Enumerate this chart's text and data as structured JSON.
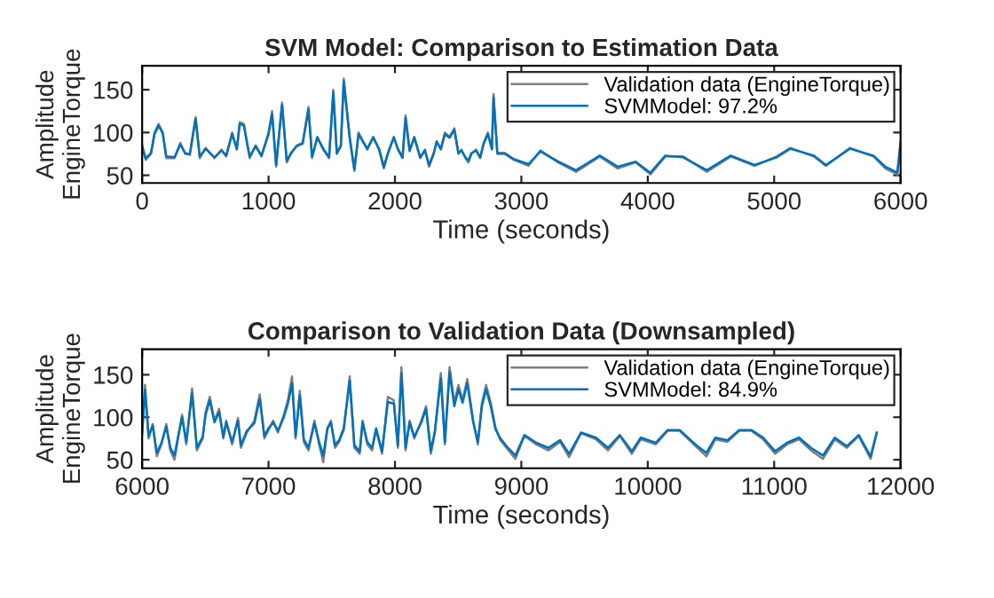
{
  "chart_data": [
    {
      "type": "line",
      "title": "SVM Model: Comparison to Estimation Data",
      "xlabel": "Time (seconds)",
      "ylabel": "Amplitude\nEngineTorque",
      "xlim": [
        0,
        6000
      ],
      "ylim": [
        41,
        178
      ],
      "xticks": [
        0,
        1000,
        2000,
        3000,
        4000,
        5000,
        6000
      ],
      "yticks": [
        50,
        100,
        150
      ],
      "legend": "top right",
      "grid": false,
      "x": [
        0,
        28,
        70,
        98,
        130,
        163,
        191,
        256,
        302,
        340,
        377,
        423,
        456,
        502,
        572,
        628,
        665,
        712,
        749,
        772,
        805,
        828,
        851,
        898,
        944,
        1000,
        1028,
        1060,
        1084,
        1107,
        1144,
        1177,
        1223,
        1270,
        1316,
        1344,
        1386,
        1433,
        1479,
        1512,
        1540,
        1572,
        1595,
        1642,
        1679,
        1712,
        1781,
        1828,
        1874,
        1912,
        1944,
        1991,
        2023,
        2060,
        2084,
        2116,
        2153,
        2200,
        2237,
        2270,
        2307,
        2330,
        2363,
        2395,
        2432,
        2470,
        2502,
        2526,
        2558,
        2581,
        2605,
        2642,
        2674,
        2702,
        2735,
        2767,
        2780,
        2810,
        2868,
        2939,
        3056,
        3151,
        3292,
        3433,
        3621,
        3762,
        3904,
        4021,
        4139,
        4280,
        4468,
        4656,
        4845,
        5019,
        5127,
        5315,
        5409,
        5598,
        5786,
        5880,
        5974,
        6000
      ],
      "series": [
        {
          "name": "Validation data (EngineTorque)",
          "color": "#808080",
          "values": [
            85,
            68,
            75,
            100,
            110,
            100,
            70,
            70,
            88,
            75,
            75,
            118,
            70,
            82,
            70,
            80,
            72,
            100,
            80,
            112,
            110,
            90,
            70,
            85,
            72,
            100,
            125,
            60,
            100,
            135,
            65,
            75,
            85,
            88,
            130,
            70,
            95,
            80,
            70,
            150,
            75,
            85,
            163,
            95,
            55,
            100,
            80,
            95,
            80,
            58,
            75,
            95,
            80,
            70,
            120,
            78,
            95,
            70,
            80,
            60,
            75,
            90,
            80,
            100,
            95,
            105,
            75,
            80,
            70,
            65,
            75,
            80,
            70,
            88,
            100,
            80,
            145,
            75,
            75,
            68,
            61,
            79,
            65,
            54,
            72,
            58,
            65,
            51,
            72,
            72,
            54,
            72,
            61,
            72,
            82,
            72,
            61,
            82,
            72,
            58,
            51,
            89
          ]
        },
        {
          "name": "SVMModel: 97.2%",
          "color": "#0072bd",
          "values": [
            84,
            70,
            76,
            98,
            108,
            99,
            72,
            71,
            86,
            76,
            74,
            116,
            72,
            81,
            71,
            79,
            73,
            98,
            81,
            110,
            108,
            89,
            72,
            84,
            73,
            98,
            122,
            62,
            98,
            132,
            67,
            76,
            84,
            87,
            127,
            72,
            94,
            81,
            71,
            147,
            76,
            84,
            160,
            93,
            57,
            98,
            81,
            94,
            81,
            60,
            76,
            94,
            81,
            71,
            117,
            79,
            94,
            71,
            79,
            62,
            76,
            89,
            81,
            98,
            94,
            103,
            76,
            79,
            71,
            67,
            76,
            79,
            71,
            87,
            98,
            81,
            141,
            76,
            76,
            69,
            63,
            78,
            66,
            56,
            73,
            60,
            66,
            53,
            73,
            71,
            56,
            73,
            62,
            71,
            81,
            73,
            62,
            81,
            73,
            60,
            53,
            88
          ]
        }
      ]
    },
    {
      "type": "line",
      "title": "Comparison to Validation Data (Downsampled)",
      "xlabel": "Time (seconds)",
      "ylabel": "Amplitude\nEngineTorque",
      "xlim": [
        6000,
        12000
      ],
      "ylim": [
        40,
        180
      ],
      "xticks": [
        6000,
        7000,
        8000,
        9000,
        10000,
        11000,
        12000
      ],
      "yticks": [
        50,
        100,
        150
      ],
      "legend": "top right",
      "grid": false,
      "x": [
        6000,
        6023,
        6051,
        6084,
        6116,
        6153,
        6191,
        6223,
        6256,
        6284,
        6316,
        6349,
        6395,
        6433,
        6479,
        6502,
        6535,
        6572,
        6609,
        6642,
        6665,
        6712,
        6758,
        6781,
        6828,
        6888,
        6930,
        6967,
        7000,
        7037,
        7074,
        7121,
        7153,
        7186,
        7214,
        7247,
        7279,
        7316,
        7363,
        7400,
        7433,
        7465,
        7493,
        7526,
        7558,
        7595,
        7642,
        7679,
        7721,
        7744,
        7781,
        7819,
        7851,
        7898,
        7944,
        7991,
        8023,
        8051,
        8084,
        8116,
        8153,
        8209,
        8246,
        8284,
        8316,
        8363,
        8395,
        8432,
        8470,
        8502,
        8535,
        8572,
        8619,
        8656,
        8688,
        8721,
        8758,
        8795,
        8830,
        8882,
        8953,
        9024,
        9118,
        9213,
        9307,
        9378,
        9472,
        9590,
        9685,
        9779,
        9874,
        9945,
        10063,
        10157,
        10252,
        10393,
        10464,
        10535,
        10630,
        10724,
        10819,
        10913,
        11008,
        11102,
        11197,
        11291,
        11386,
        11480,
        11574,
        11669,
        11763,
        11811
      ],
      "series": [
        {
          "name": "Validation data (EngineTorque)",
          "color": "#808080",
          "values": [
            85,
            138,
            75,
            92,
            54,
            68,
            92,
            61,
            50,
            75,
            103,
            68,
            134,
            61,
            75,
            106,
            124,
            96,
            110,
            75,
            96,
            68,
            99,
            64,
            82,
            96,
            127,
            75,
            85,
            96,
            82,
            103,
            120,
            148,
            75,
            131,
            71,
            61,
            96,
            68,
            47,
            85,
            96,
            64,
            71,
            85,
            148,
            64,
            57,
            96,
            68,
            61,
            85,
            57,
            124,
            120,
            64,
            159,
            61,
            96,
            75,
            96,
            113,
            57,
            82,
            152,
            68,
            159,
            117,
            138,
            120,
            145,
            96,
            68,
            117,
            138,
            117,
            88,
            74,
            64,
            51,
            78,
            68,
            61,
            71,
            53,
            81,
            74,
            61,
            78,
            57,
            74,
            68,
            84,
            84,
            64,
            54,
            74,
            71,
            84,
            84,
            74,
            57,
            68,
            74,
            61,
            51,
            74,
            64,
            78,
            51,
            81
          ]
        },
        {
          "name": "SVMModel: 84.9%",
          "color": "#0072bd",
          "values": [
            80,
            132,
            78,
            90,
            58,
            70,
            89,
            64,
            55,
            77,
            100,
            71,
            128,
            64,
            77,
            103,
            120,
            94,
            106,
            77,
            94,
            71,
            96,
            67,
            84,
            93,
            122,
            78,
            87,
            94,
            84,
            100,
            116,
            140,
            78,
            126,
            74,
            64,
            93,
            71,
            55,
            87,
            94,
            67,
            73,
            87,
            143,
            67,
            60,
            94,
            71,
            64,
            87,
            60,
            118,
            116,
            67,
            152,
            64,
            94,
            77,
            94,
            110,
            60,
            84,
            146,
            71,
            153,
            113,
            133,
            117,
            140,
            94,
            71,
            113,
            133,
            113,
            86,
            76,
            66,
            55,
            79,
            70,
            64,
            73,
            57,
            82,
            76,
            64,
            79,
            60,
            76,
            70,
            85,
            85,
            66,
            58,
            76,
            73,
            85,
            85,
            76,
            60,
            70,
            76,
            64,
            55,
            76,
            66,
            79,
            54,
            82
          ]
        }
      ]
    }
  ]
}
